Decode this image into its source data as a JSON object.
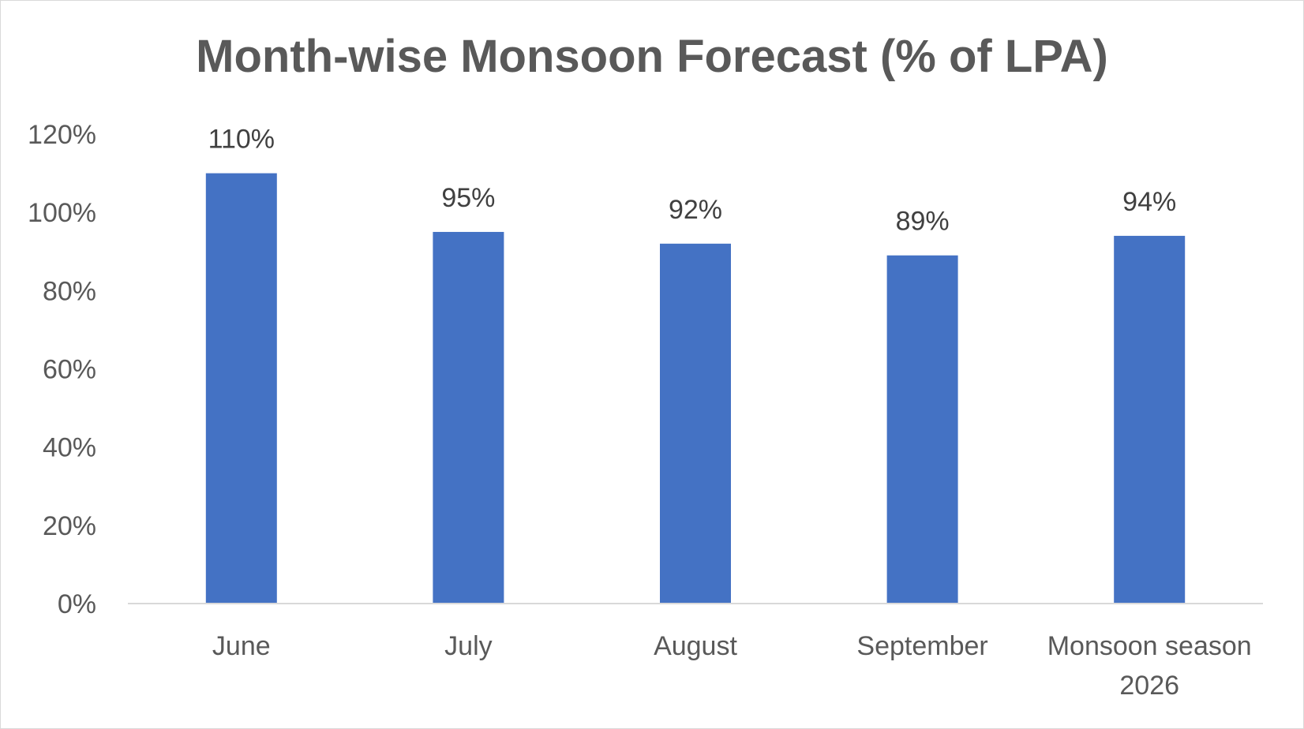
{
  "chart_data": {
    "type": "bar",
    "title": "Month-wise Monsoon Forecast (% of LPA)",
    "xlabel": "",
    "ylabel": "",
    "categories": [
      [
        "June"
      ],
      [
        "July"
      ],
      [
        "August"
      ],
      [
        "September"
      ],
      [
        "Monsoon season",
        "2026"
      ]
    ],
    "values": [
      110,
      95,
      92,
      89,
      94
    ],
    "data_labels": [
      "110%",
      "95%",
      "92%",
      "89%",
      "94%"
    ],
    "ylim": [
      0,
      120
    ],
    "y_ticks": [
      0,
      20,
      40,
      60,
      80,
      100,
      120
    ],
    "y_tick_labels": [
      "0%",
      "20%",
      "40%",
      "60%",
      "80%",
      "100%",
      "120%"
    ],
    "gridlines": false,
    "legend": "none",
    "colors": {
      "bar": "#4472C4",
      "axis": "#d9d9d9",
      "text": "#595959"
    }
  }
}
